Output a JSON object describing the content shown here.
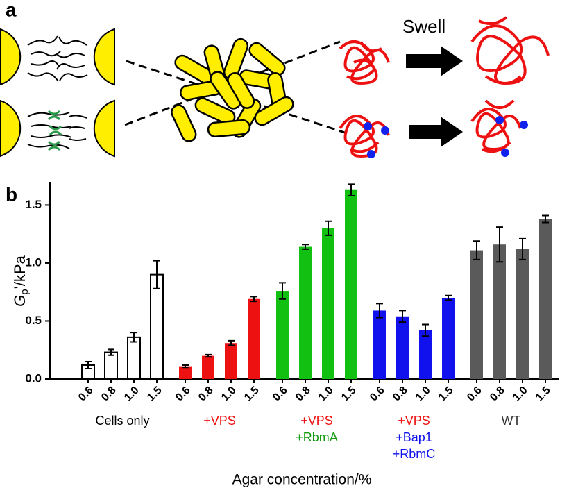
{
  "panel_a": {
    "label": "a",
    "swell_text": "Swell"
  },
  "chart_data": {
    "type": "grouped-bar",
    "panel_label": "b",
    "ylabel": {
      "symbol": "G",
      "subscript": "p",
      "unit": "'/kPa"
    },
    "xlabel": "Agar concentration/%",
    "categories": [
      "0.6",
      "0.8",
      "1.0",
      "1.5"
    ],
    "ylim": [
      0,
      1.7
    ],
    "yticks": [
      {
        "value": 0,
        "label": "0.0"
      },
      0.5,
      {
        "value": 1,
        "label": "1.0"
      },
      1.5
    ],
    "series": [
      {
        "label_lines": [
          {
            "text": "Cells only",
            "color": "#000000"
          }
        ],
        "color": "#ffffff",
        "edgecolor": "#000000",
        "values": [
          0.12,
          0.23,
          0.36,
          0.9
        ],
        "errors": [
          0.03,
          0.025,
          0.04,
          0.12
        ]
      },
      {
        "label_lines": [
          {
            "text": "+VPS",
            "color": "#ee1111"
          }
        ],
        "color": "#ee1111",
        "values": [
          0.11,
          0.2,
          0.31,
          0.69
        ],
        "errors": [
          0.01,
          0.01,
          0.02,
          0.02
        ]
      },
      {
        "label_lines": [
          {
            "text": "+VPS",
            "color": "#ee1111"
          },
          {
            "text": "+RbmA",
            "color": "#109a10"
          }
        ],
        "color": "#11c011",
        "values": [
          0.76,
          1.14,
          1.3,
          1.63
        ],
        "errors": [
          0.07,
          0.02,
          0.06,
          0.05
        ]
      },
      {
        "label_lines": [
          {
            "text": "+VPS",
            "color": "#ee1111"
          },
          {
            "text": "+Bap1",
            "color": "#1111ee"
          },
          {
            "text": "+RbmC",
            "color": "#1111ee"
          }
        ],
        "color": "#1111ee",
        "values": [
          0.59,
          0.54,
          0.42,
          0.7
        ],
        "errors": [
          0.06,
          0.05,
          0.05,
          0.02
        ]
      },
      {
        "label_lines": [
          {
            "text": "WT",
            "color": "#333333"
          }
        ],
        "color": "#5a5a5a",
        "values": [
          1.11,
          1.16,
          1.12,
          1.38
        ],
        "errors": [
          0.08,
          0.15,
          0.09,
          0.03
        ]
      }
    ]
  }
}
